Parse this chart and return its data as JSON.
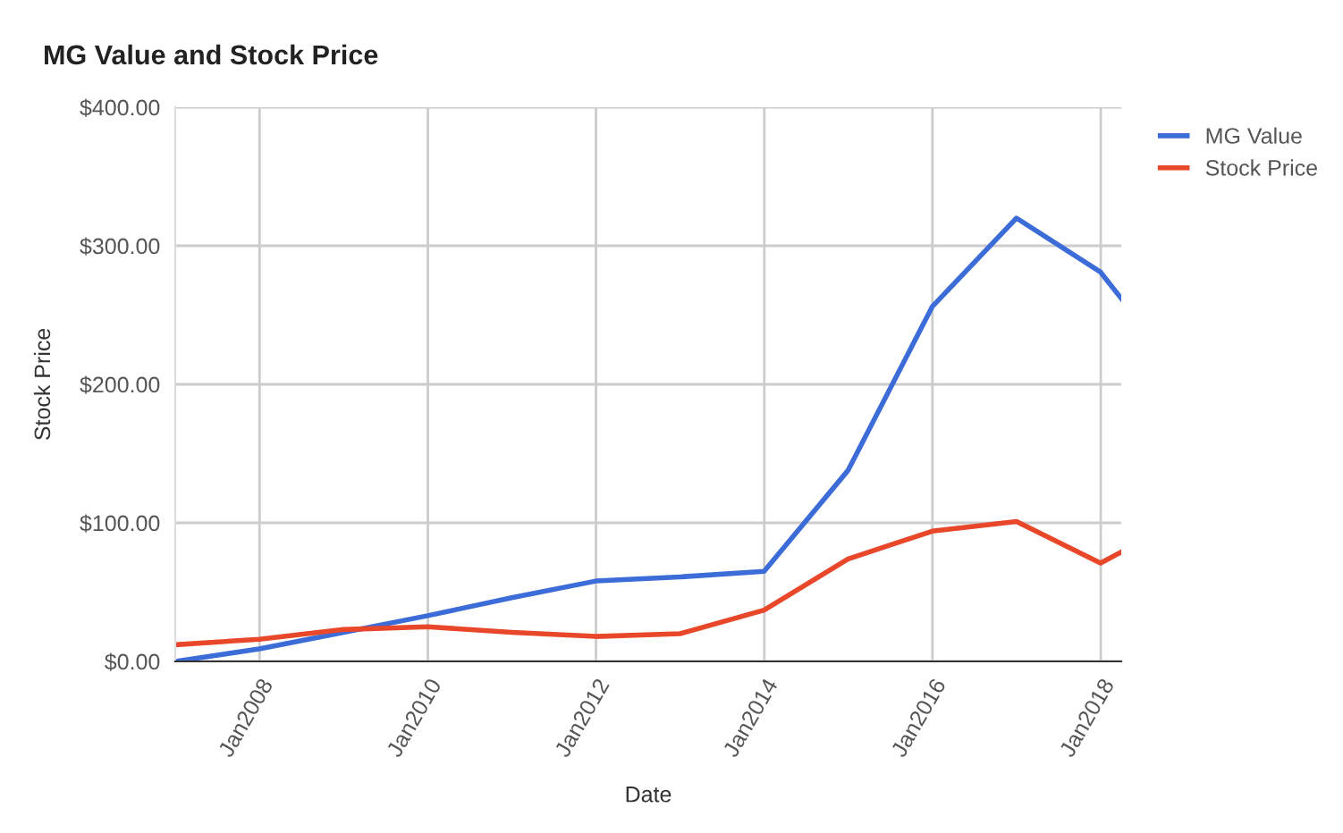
{
  "chart_data": {
    "type": "line",
    "title": "MG Value and Stock Price",
    "xlabel": "Date",
    "ylabel": "Stock Price",
    "x": [
      "2006-12-31",
      "2007-12-31",
      "2008-12-31",
      "2009-12-31",
      "2010-12-31",
      "2011-12-31",
      "2012-12-31",
      "2013-12-31",
      "2014-12-31",
      "2015-12-31",
      "2016-12-31",
      "2017-12-31",
      "2018-03-31"
    ],
    "series": [
      {
        "name": "MG Value",
        "color": "#3c6cd8",
        "values": [
          0,
          9,
          21,
          33,
          46,
          58,
          61,
          65,
          138,
          256,
          320,
          281,
          262
        ]
      },
      {
        "name": "Stock Price",
        "color": "#e8472a",
        "values": [
          12,
          16,
          23,
          25,
          21,
          18,
          20,
          37,
          74,
          94,
          101,
          71,
          79
        ]
      }
    ],
    "xlim": [
      "2006-12-31",
      "2018-03-31"
    ],
    "xticks": [
      {
        "value": "2008-01-01",
        "label": "Jan2008"
      },
      {
        "value": "2010-01-01",
        "label": "Jan2010"
      },
      {
        "value": "2012-01-01",
        "label": "Jan2012"
      },
      {
        "value": "2014-01-01",
        "label": "Jan2014"
      },
      {
        "value": "2016-01-01",
        "label": "Jan2016"
      },
      {
        "value": "2018-01-01",
        "label": "Jan2018"
      }
    ],
    "ylim": [
      0,
      400
    ],
    "yticks": [
      {
        "value": 0,
        "label": "$0.00"
      },
      {
        "value": 100,
        "label": "$100.00"
      },
      {
        "value": 200,
        "label": "$200.00"
      },
      {
        "value": 300,
        "label": "$300.00"
      },
      {
        "value": 400,
        "label": "$400.00"
      }
    ],
    "grid": true,
    "legend": "top right",
    "marker": "none",
    "line_style": "solid"
  }
}
